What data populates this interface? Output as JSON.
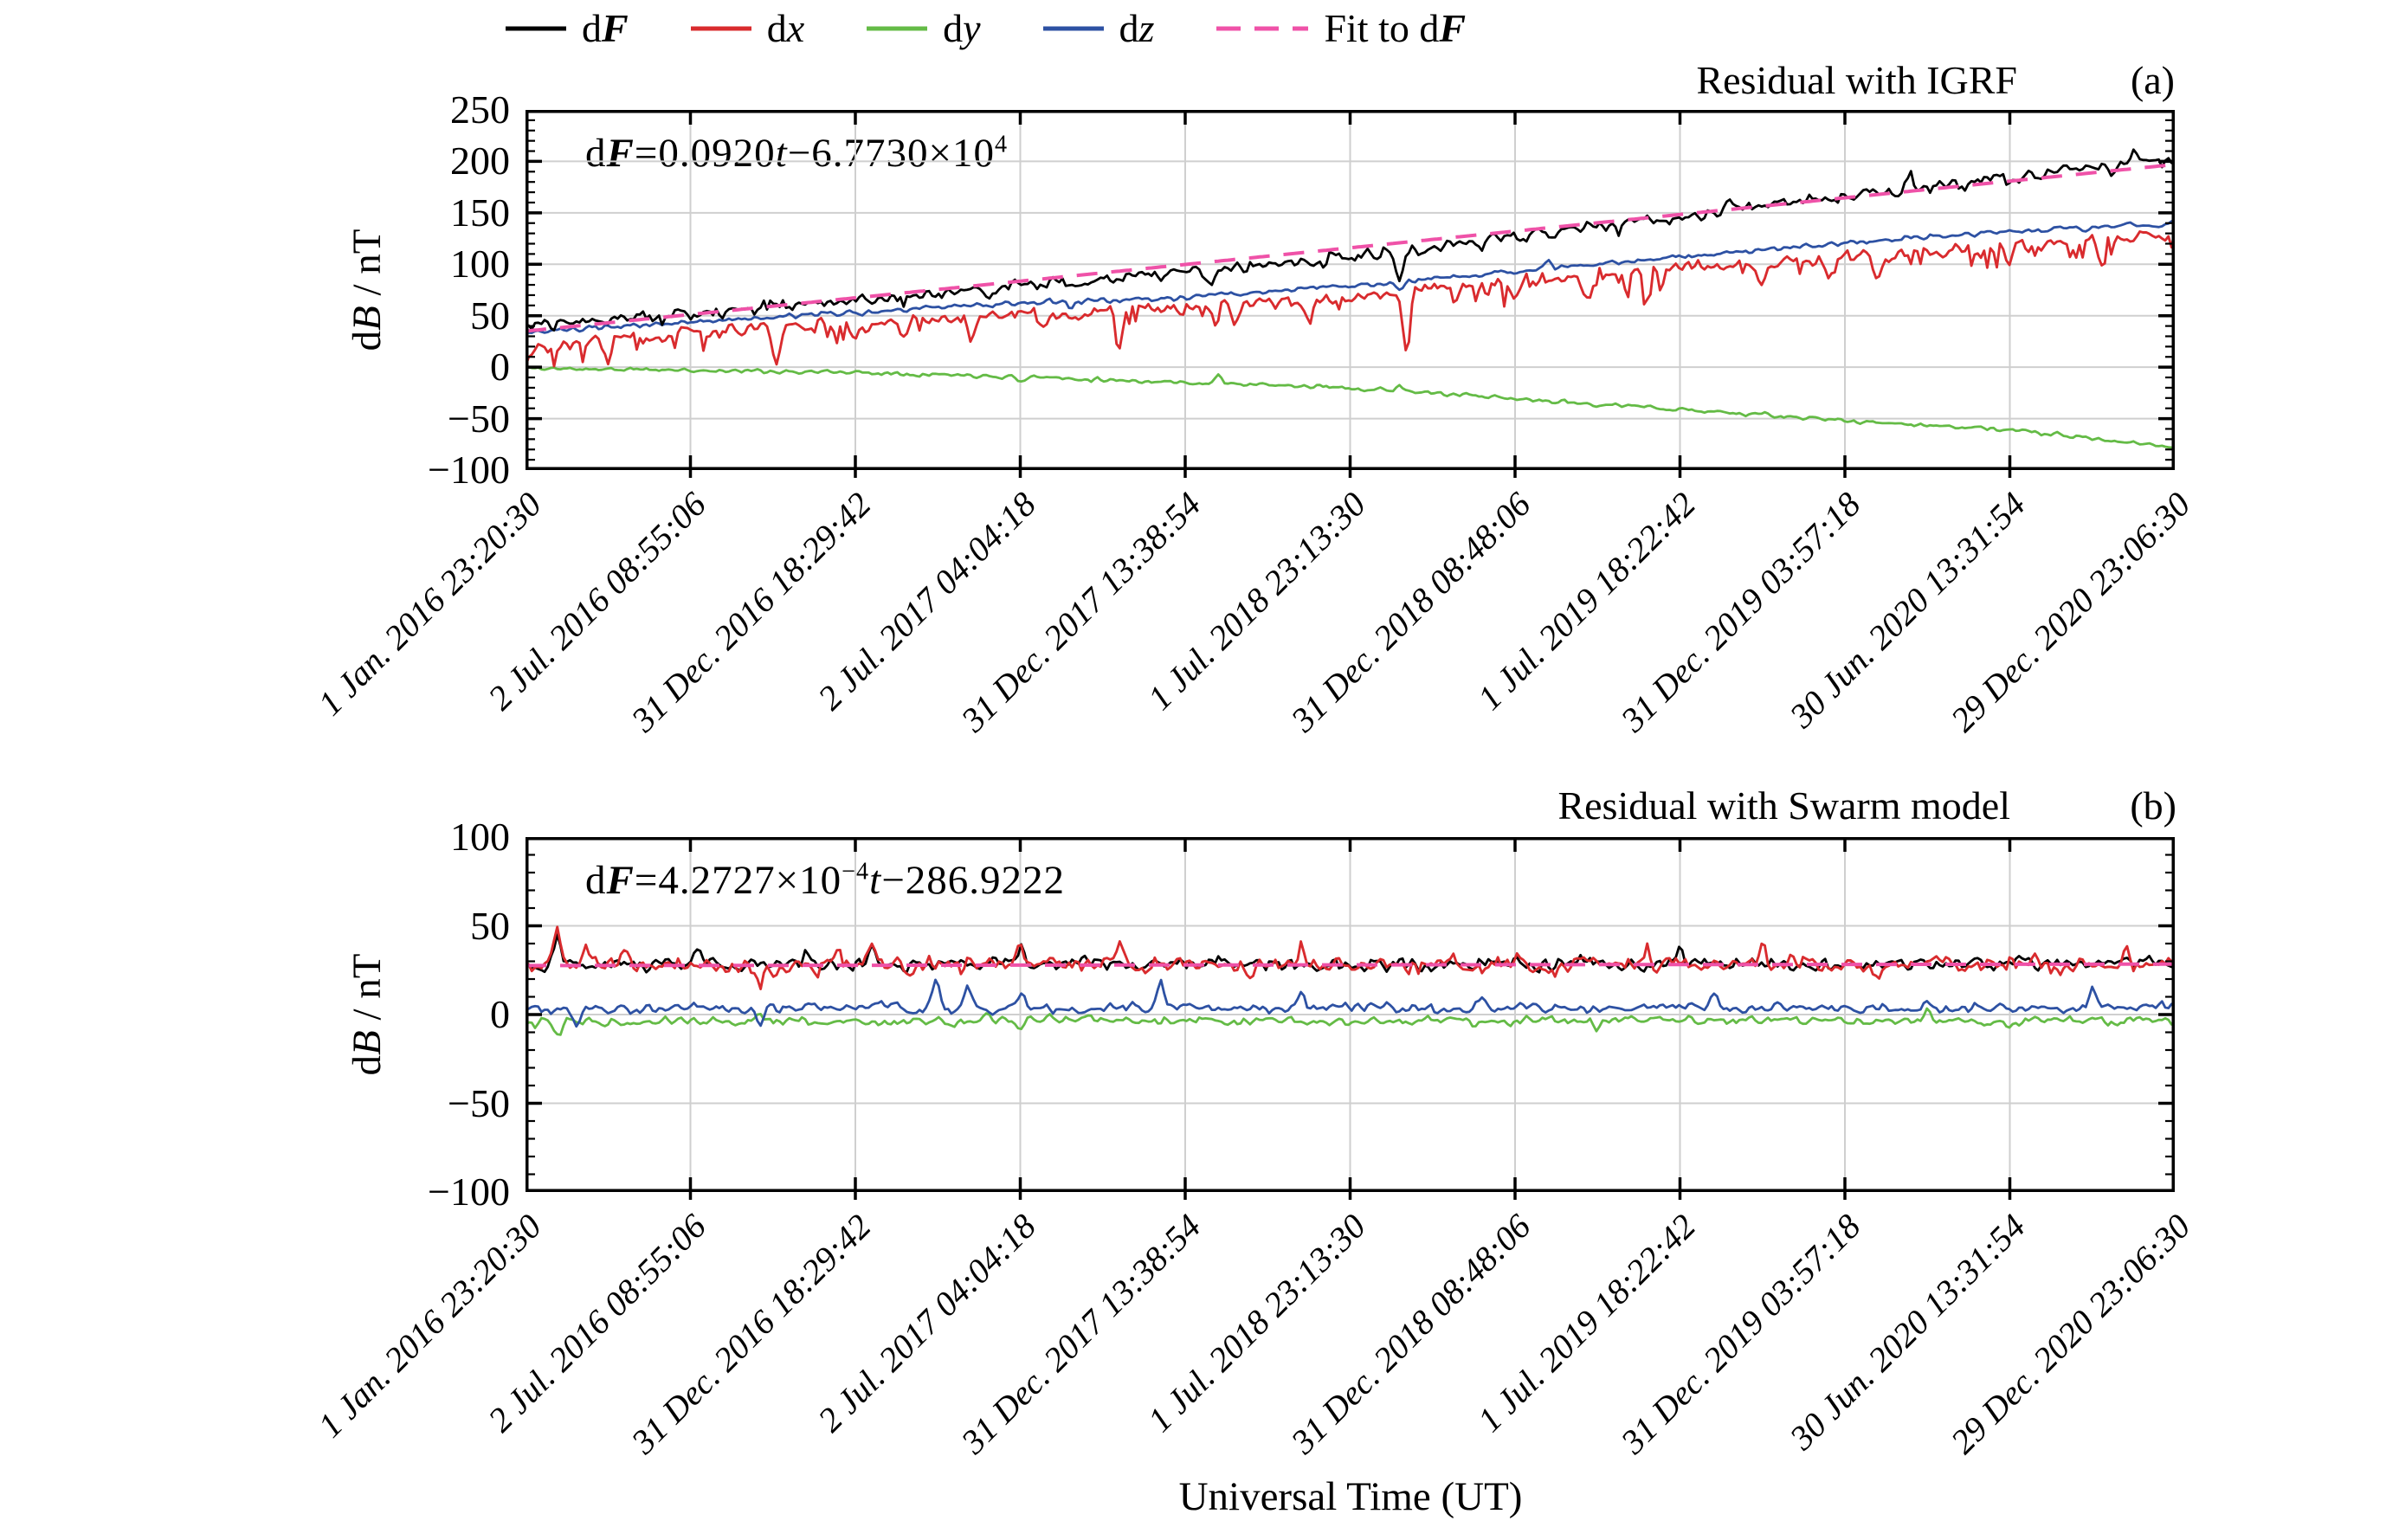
{
  "figure": {
    "background": "#ffffff",
    "xlabel": "Universal Time (UT)",
    "grid_color": "#cfcfcf",
    "axis_color": "#000000",
    "legend": {
      "position": "top",
      "items": [
        {
          "name": "dF",
          "parts": [
            {
              "t": "d",
              "s": "up"
            },
            {
              "t": "F",
              "s": "bi"
            }
          ],
          "color": "#000000",
          "dash": null
        },
        {
          "name": "dx",
          "parts": [
            {
              "t": "d",
              "s": "up"
            },
            {
              "t": "x",
              "s": "it"
            }
          ],
          "color": "#d92b2e",
          "dash": null
        },
        {
          "name": "dy",
          "parts": [
            {
              "t": "d",
              "s": "up"
            },
            {
              "t": "y",
              "s": "it"
            }
          ],
          "color": "#64bb46",
          "dash": null
        },
        {
          "name": "dz",
          "parts": [
            {
              "t": "d",
              "s": "up"
            },
            {
              "t": "z",
              "s": "it"
            }
          ],
          "color": "#2d51a3",
          "dash": null
        },
        {
          "name": "fit-dF",
          "parts": [
            {
              "t": "Fit to d",
              "s": "up"
            },
            {
              "t": "F",
              "s": "bi"
            }
          ],
          "color": "#ef52a8",
          "dash": [
            28,
            16
          ]
        }
      ]
    }
  },
  "chart_data": [
    {
      "id": "a",
      "type": "line",
      "title": "Residual with IGRF",
      "panel_label": "(a)",
      "ylabel_text": "dB / nT",
      "ylabel_parts": [
        {
          "t": "d",
          "s": "up"
        },
        {
          "t": "B",
          "s": "it"
        },
        {
          "t": " / nT",
          "s": "up"
        }
      ],
      "formula_text": "dF=0.0920t−6.7730×10⁴",
      "formula_parts": [
        {
          "t": "d",
          "s": "up"
        },
        {
          "t": "F",
          "s": "bi"
        },
        {
          "t": "=0.0920",
          "s": "up"
        },
        {
          "t": "t",
          "s": "it"
        },
        {
          "t": "−6.7730×10",
          "s": "up"
        },
        {
          "t": "4",
          "s": "sup"
        }
      ],
      "ylim": [
        -100,
        250
      ],
      "ytick_step": 50,
      "yminor_step": 10,
      "grid": true,
      "xtick_labels": [
        "1 Jan. 2016 23:20:30",
        "2 Jul. 2016 08:55:06",
        "31 Dec. 2016 18:29:42",
        "2 Jul. 2017 04:04:18",
        "31 Dec. 2017 13:38:54",
        "1 Jul. 2018 23:13:30",
        "31 Dec. 2018 08:48:06",
        "1 Jul. 2019 18:22:42",
        "31 Dec. 2019 03:57:18",
        "30 Jun. 2020 13:31:54",
        "29 Dec. 2020 23:06:30"
      ],
      "series": [
        {
          "name": "dy",
          "color": "#64bb46",
          "width": 2.8,
          "anchors": [
            -1,
            -3,
            -5,
            -9,
            -15,
            -20,
            -31,
            -41,
            -52,
            -61,
            -78
          ],
          "noise": 2.4,
          "downbias": 0,
          "spikes": [
            [
              0.42,
              9
            ],
            [
              0.3,
              -6
            ],
            [
              0.53,
              7
            ]
          ],
          "seed": 11
        },
        {
          "name": "dx",
          "color": "#d92b2e",
          "width": 2.9,
          "anchors": [
            20,
            34,
            42,
            51,
            57,
            68,
            83,
            96,
            105,
            117,
            129
          ],
          "noise": 7.5,
          "downbias": 18,
          "spikes": [
            [
              0.0,
              -17
            ],
            [
              0.05,
              -22
            ],
            [
              0.152,
              -38
            ],
            [
              0.2,
              -18
            ],
            [
              0.23,
              -21
            ],
            [
              0.27,
              -24
            ],
            [
              0.315,
              -18
            ],
            [
              0.36,
              -42
            ],
            [
              0.43,
              -24
            ],
            [
              0.475,
              -18
            ],
            [
              0.534,
              -62
            ],
            [
              0.6,
              -18
            ],
            [
              0.645,
              -26
            ],
            [
              0.68,
              -28
            ],
            [
              0.75,
              -22
            ],
            [
              0.79,
              -18
            ],
            [
              0.82,
              -26
            ],
            [
              0.9,
              -18
            ],
            [
              0.955,
              -28
            ]
          ],
          "seed": 22
        },
        {
          "name": "dz",
          "color": "#2d51a3",
          "width": 2.8,
          "anchors": [
            33,
            44,
            53,
            62,
            68,
            79,
            93,
            107,
            121,
            132,
            140
          ],
          "noise": 3.0,
          "downbias": 0,
          "spikes": [
            [
              0.53,
              -10
            ],
            [
              0.62,
              8
            ],
            [
              0.33,
              -8
            ]
          ],
          "seed": 33
        },
        {
          "name": "dF",
          "color": "#000000",
          "width": 2.8,
          "anchors": [
            41,
            53,
            66,
            80,
            92,
            106,
            127,
            147,
            167,
            184,
            204
          ],
          "noise": 7.0,
          "downbias": 6,
          "spikes": [
            [
              0.12,
              -12
            ],
            [
              0.415,
              -16
            ],
            [
              0.49,
              14
            ],
            [
              0.53,
              -30
            ],
            [
              0.73,
              12
            ],
            [
              0.84,
              13
            ],
            [
              0.975,
              12
            ]
          ],
          "seed": 44
        },
        {
          "name": "fit-dF",
          "color": "#ef52a8",
          "width": 4,
          "dash": [
            24,
            16
          ],
          "anchors": [
            35,
            197
          ],
          "noise": 0,
          "downbias": 0,
          "spikes": [],
          "seed": 1
        }
      ]
    },
    {
      "id": "b",
      "type": "line",
      "title": "Residual with Swarm model",
      "panel_label": "(b)",
      "ylabel_text": "dB / nT",
      "ylabel_parts": [
        {
          "t": "d",
          "s": "up"
        },
        {
          "t": "B",
          "s": "it"
        },
        {
          "t": " / nT",
          "s": "up"
        }
      ],
      "formula_text": "dF=4.2727×10⁻⁴t−286.9222",
      "formula_parts": [
        {
          "t": "d",
          "s": "up"
        },
        {
          "t": "F",
          "s": "bi"
        },
        {
          "t": "=4.2727×10",
          "s": "up"
        },
        {
          "t": "−4",
          "s": "sup"
        },
        {
          "t": "t",
          "s": "it"
        },
        {
          "t": "−286.9222",
          "s": "up"
        }
      ],
      "ylim": [
        -100,
        100
      ],
      "ytick_step": 50,
      "yminor_step": 10,
      "grid": true,
      "xtick_labels": [
        "1 Jan. 2016 23:20:30",
        "2 Jul. 2016 08:55:06",
        "31 Dec. 2016 18:29:42",
        "2 Jul. 2017 04:04:18",
        "31 Dec. 2017 13:38:54",
        "1 Jul. 2018 23:13:30",
        "31 Dec. 2018 08:48:06",
        "1 Jul. 2019 18:22:42",
        "31 Dec. 2019 03:57:18",
        "30 Jun. 2020 13:31:54",
        "29 Dec. 2020 23:06:30"
      ],
      "series": [
        {
          "name": "dF",
          "color": "#000000",
          "width": 2.8,
          "anchors": [
            28,
            28.6,
            28,
            29,
            28.4,
            28,
            28.6,
            29,
            28,
            28.6,
            29
          ],
          "noise": 4.6,
          "downbias": 0,
          "spikes": [
            [
              0.019,
              20
            ],
            [
              0.105,
              9
            ],
            [
              0.17,
              8
            ],
            [
              0.21,
              10
            ],
            [
              0.3,
              11
            ],
            [
              0.42,
              8
            ],
            [
              0.55,
              -7
            ],
            [
              0.7,
              8
            ],
            [
              0.88,
              7
            ]
          ],
          "seed": 55
        },
        {
          "name": "dy",
          "color": "#64bb46",
          "width": 2.8,
          "anchors": [
            -4,
            -3.5,
            -4,
            -3,
            -3.5,
            -4,
            -3.5,
            -3,
            -3.5,
            -4,
            -3
          ],
          "noise": 3.0,
          "downbias": 0,
          "spikes": [
            [
              0.02,
              -7
            ],
            [
              0.142,
              6
            ],
            [
              0.3,
              -7
            ],
            [
              0.45,
              6
            ],
            [
              0.65,
              -6
            ],
            [
              0.85,
              5
            ]
          ],
          "seed": 66
        },
        {
          "name": "dz",
          "color": "#2d51a3",
          "width": 2.8,
          "anchors": [
            4,
            3.5,
            4,
            3,
            4,
            3.5,
            3,
            4,
            3.5,
            3,
            4
          ],
          "noise": 3.4,
          "downbias": 0,
          "spikes": [
            [
              0.031,
              -12
            ],
            [
              0.142,
              -13
            ],
            [
              0.249,
              18
            ],
            [
              0.268,
              12
            ],
            [
              0.3,
              9
            ],
            [
              0.385,
              16
            ],
            [
              0.47,
              9
            ],
            [
              0.58,
              8
            ],
            [
              0.72,
              7
            ],
            [
              0.85,
              7
            ],
            [
              0.95,
              11
            ]
          ],
          "seed": 77
        },
        {
          "name": "dx",
          "color": "#d92b2e",
          "width": 2.9,
          "anchors": [
            28.5,
            28,
            28.5,
            29,
            28.5,
            28,
            29,
            28.5,
            28,
            29,
            28.5
          ],
          "noise": 5.2,
          "downbias": 4,
          "spikes": [
            [
              0.019,
              22
            ],
            [
              0.036,
              14
            ],
            [
              0.06,
              9
            ],
            [
              0.142,
              -13
            ],
            [
              0.15,
              -10
            ],
            [
              0.19,
              8
            ],
            [
              0.21,
              9
            ],
            [
              0.3,
              10
            ],
            [
              0.36,
              13
            ],
            [
              0.44,
              -8
            ],
            [
              0.47,
              12
            ],
            [
              0.56,
              8
            ],
            [
              0.62,
              -7
            ],
            [
              0.68,
              10
            ],
            [
              0.75,
              11
            ],
            [
              0.82,
              -7
            ],
            [
              0.9,
              8
            ],
            [
              0.97,
              9
            ]
          ],
          "seed": 88
        },
        {
          "name": "fit-dF",
          "color": "#ef52a8",
          "width": 4,
          "dash": [
            24,
            16
          ],
          "anchors": [
            27.6,
            28.4
          ],
          "noise": 0,
          "downbias": 0,
          "spikes": [],
          "seed": 1
        }
      ]
    }
  ]
}
